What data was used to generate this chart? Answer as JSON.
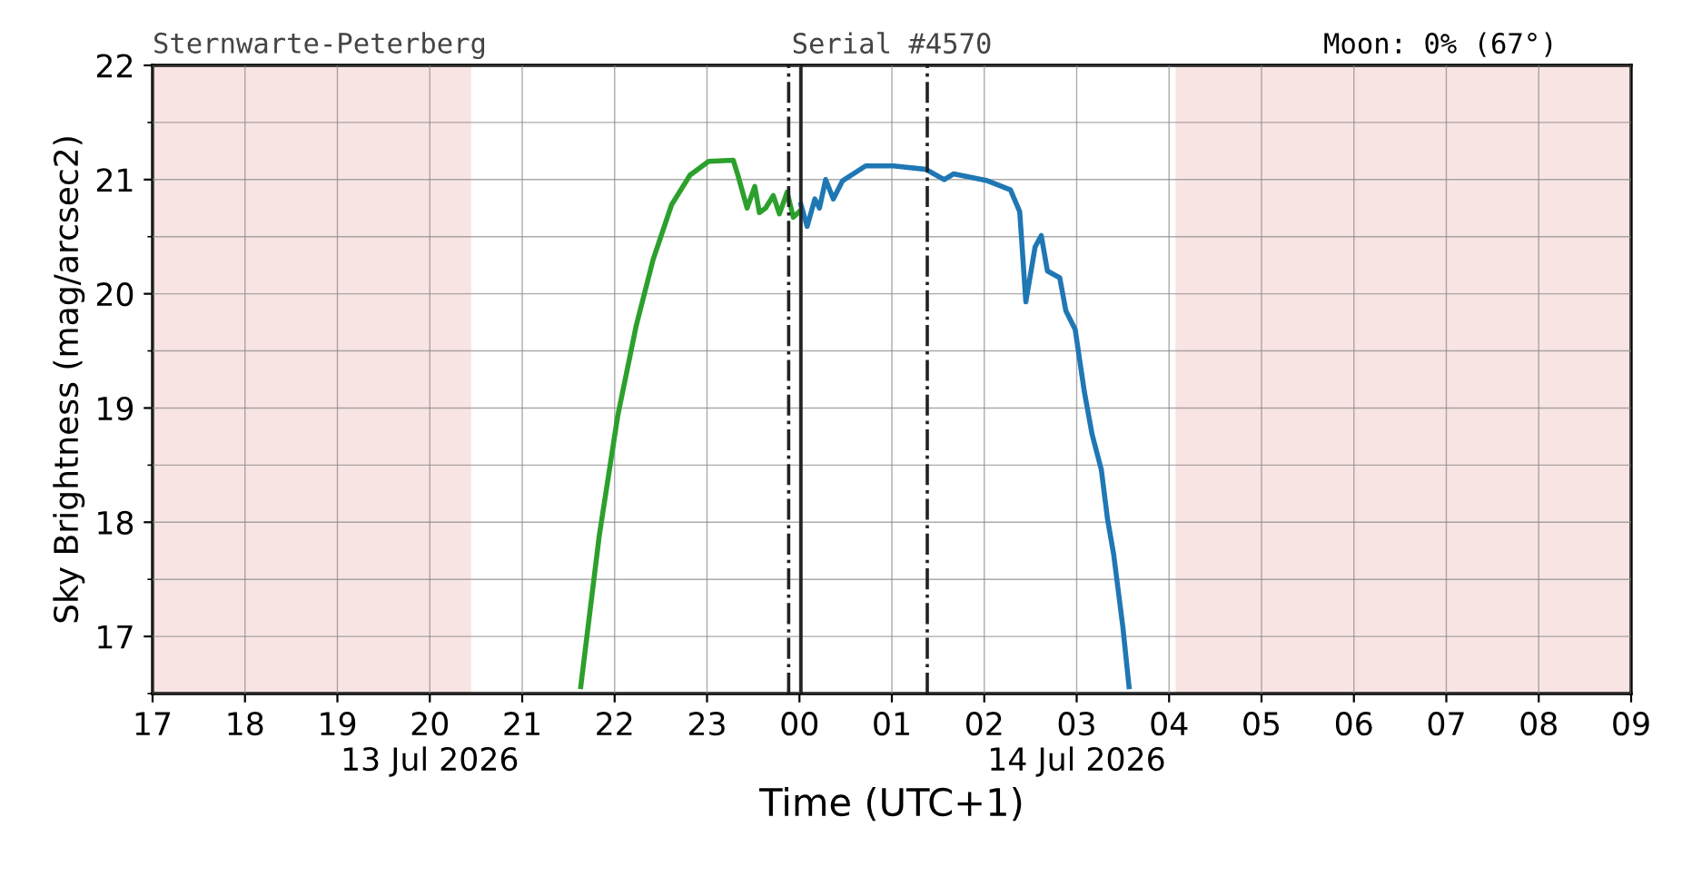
{
  "chart_data": {
    "type": "line",
    "xlabel": "Time (UTC+1)",
    "ylabel": "Sky Brightness (mag/arcsec2)",
    "annotations": [
      "Sternwarte-Peterberg",
      "Serial #4570",
      "Moon: 0% (67°)"
    ],
    "xlim": [
      "2026-07-13T17:00",
      "2026-07-14T09:00"
    ],
    "ylim": [
      16.5,
      22
    ],
    "xticks": [
      {
        "value": "2026-07-13T17:00",
        "label": "17"
      },
      {
        "value": "2026-07-13T18:00",
        "label": "18"
      },
      {
        "value": "2026-07-13T19:00",
        "label": "19"
      },
      {
        "value": "2026-07-13T20:00",
        "label": "20\n13 Jul 2026"
      },
      {
        "value": "2026-07-13T21:00",
        "label": "21"
      },
      {
        "value": "2026-07-13T22:00",
        "label": "22"
      },
      {
        "value": "2026-07-13T23:00",
        "label": "23"
      },
      {
        "value": "2026-07-14T00:00",
        "label": "00"
      },
      {
        "value": "2026-07-14T01:00",
        "label": "01"
      },
      {
        "value": "2026-07-14T02:00",
        "label": "02"
      },
      {
        "value": "2026-07-14T03:00",
        "label": "03\n14 Jul 2026"
      },
      {
        "value": "2026-07-14T04:00",
        "label": "04"
      },
      {
        "value": "2026-07-14T05:00",
        "label": "05"
      },
      {
        "value": "2026-07-14T06:00",
        "label": "06"
      },
      {
        "value": "2026-07-14T07:00",
        "label": "07"
      },
      {
        "value": "2026-07-14T08:00",
        "label": "08"
      },
      {
        "value": "2026-07-14T09:00",
        "label": "09"
      }
    ],
    "yticks": [
      17,
      18,
      19,
      20,
      21,
      22
    ],
    "grid": true,
    "legend": false,
    "series": [
      {
        "color": "#2ca02c",
        "x": [
          "2026-07-13T21:38",
          "2026-07-13T21:50",
          "2026-07-13T22:02",
          "2026-07-13T22:14",
          "2026-07-13T22:25",
          "2026-07-13T22:37",
          "2026-07-13T22:49",
          "2026-07-13T23:01",
          "2026-07-13T23:17",
          "2026-07-13T23:20",
          "2026-07-13T23:26",
          "2026-07-13T23:31",
          "2026-07-13T23:34",
          "2026-07-13T23:38",
          "2026-07-13T23:43",
          "2026-07-13T23:47",
          "2026-07-13T23:52",
          "2026-07-13T23:56",
          "2026-07-14T00:00"
        ],
        "values": [
          16.56,
          17.88,
          18.93,
          19.72,
          20.3,
          20.78,
          21.04,
          21.16,
          21.17,
          21.04,
          20.75,
          20.94,
          20.71,
          20.75,
          20.86,
          20.7,
          20.89,
          20.67,
          20.72
        ]
      },
      {
        "color": "#1f77b4",
        "x": [
          "2026-07-14T00:01",
          "2026-07-14T00:05",
          "2026-07-14T00:10",
          "2026-07-14T00:13",
          "2026-07-14T00:17",
          "2026-07-14T00:22",
          "2026-07-14T00:28",
          "2026-07-14T00:43",
          "2026-07-14T01:01",
          "2026-07-14T01:22",
          "2026-07-14T01:34",
          "2026-07-14T01:40",
          "2026-07-14T02:02",
          "2026-07-14T02:17",
          "2026-07-14T02:23",
          "2026-07-14T02:27",
          "2026-07-14T02:33",
          "2026-07-14T02:37",
          "2026-07-14T02:41",
          "2026-07-14T02:49",
          "2026-07-14T02:53",
          "2026-07-14T02:59",
          "2026-07-14T03:05",
          "2026-07-14T03:10",
          "2026-07-14T03:16",
          "2026-07-14T03:20",
          "2026-07-14T03:24",
          "2026-07-14T03:30",
          "2026-07-14T03:34"
        ],
        "values": [
          20.78,
          20.59,
          20.83,
          20.75,
          21.0,
          20.83,
          20.99,
          21.12,
          21.12,
          21.09,
          21.0,
          21.05,
          20.99,
          20.91,
          20.72,
          19.93,
          20.41,
          20.51,
          20.2,
          20.14,
          19.85,
          19.69,
          19.14,
          18.77,
          18.46,
          18.03,
          17.72,
          17.08,
          16.56
        ]
      }
    ],
    "ref_lines": [
      {
        "axis": "x",
        "value": "2026-07-13T23:53",
        "color": "#222222",
        "line_style": "dashdot"
      },
      {
        "axis": "x",
        "value": "2026-07-14T00:01",
        "color": "#222222",
        "line_style": "solid"
      },
      {
        "axis": "x",
        "value": "2026-07-14T01:23",
        "color": "#222222",
        "line_style": "dashdot"
      }
    ],
    "bands": [
      {
        "axis": "x",
        "from": "2026-07-13T17:00",
        "to": "2026-07-13T20:26",
        "color": "#f9e4e4"
      },
      {
        "axis": "x",
        "from": "2026-07-14T04:05",
        "to": "2026-07-14T09:00",
        "color": "#f9e4e4"
      }
    ]
  }
}
